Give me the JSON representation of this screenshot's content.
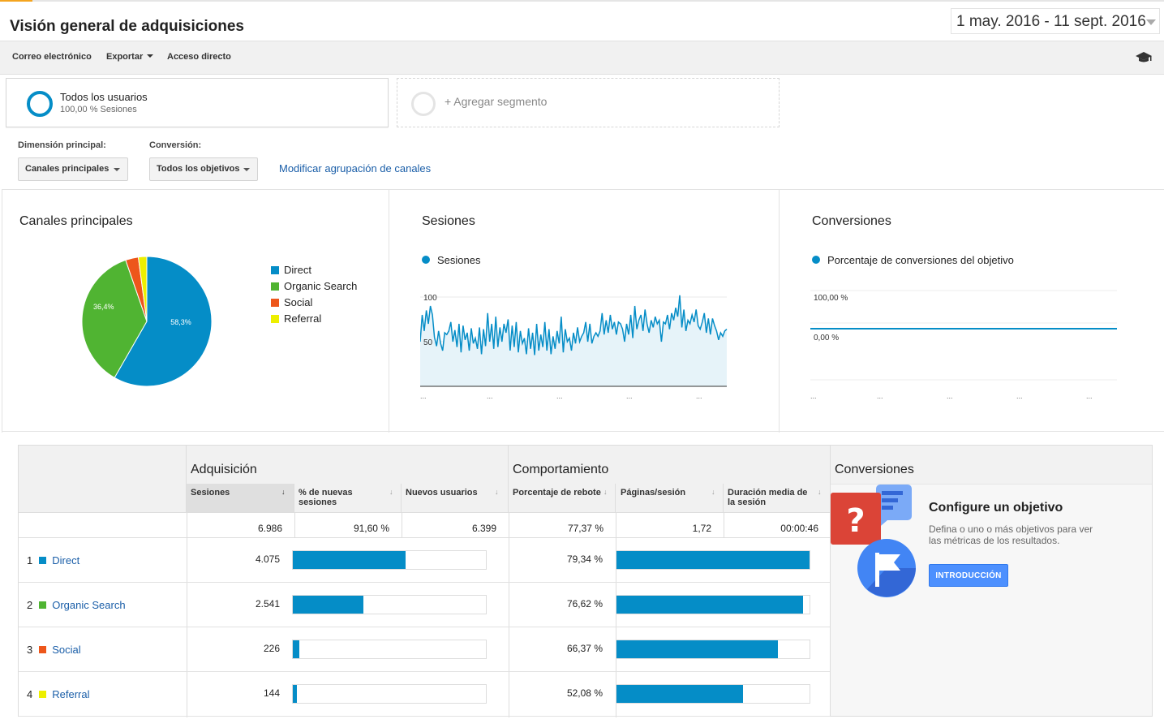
{
  "page": {
    "title": "Visión general de adquisiciones",
    "date_range": "1 may. 2016 - 11 sept. 2016"
  },
  "toolbar": {
    "email": "Correo electrónico",
    "export": "Exportar",
    "shortcut": "Acceso directo"
  },
  "segment": {
    "name": "Todos los usuarios",
    "sub": "100,00 % Sesiones",
    "add": "+ Agregar segmento"
  },
  "controls": {
    "dimension_label": "Dimensión principal:",
    "dimension_value": "Canales principales",
    "conversion_label": "Conversión:",
    "conversion_value": "Todos los objetivos",
    "modify_link": "Modificar agrupación de canales"
  },
  "colors": {
    "direct": "#058dc7",
    "organic": "#50b432",
    "social": "#ed561b",
    "referral": "#edef00",
    "link": "#1a5ea8"
  },
  "pie_panel": {
    "title": "Canales principales",
    "legend": [
      "Direct",
      "Organic Search",
      "Social",
      "Referral"
    ],
    "label_direct": "58,3%",
    "label_organic": "36,4%"
  },
  "sessions_panel": {
    "title": "Sesiones",
    "legend": "Sesiones",
    "tick_100": "100",
    "tick_50": "50",
    "x_ticks": [
      "...",
      "...",
      "...",
      "...",
      "..."
    ]
  },
  "conversion_panel": {
    "title": "Conversiones",
    "legend": "Porcentaje de conversiones del objetivo",
    "tick_top": "100,00 %",
    "tick_zero": "0,00 %",
    "x_ticks": [
      "...",
      "...",
      "...",
      "...",
      "..."
    ]
  },
  "chart_data": [
    {
      "type": "pie",
      "categories": [
        "Direct",
        "Organic Search",
        "Social",
        "Referral"
      ],
      "values": [
        58.3,
        36.4,
        3.2,
        2.1
      ]
    },
    {
      "type": "area",
      "series": [
        {
          "name": "Sesiones",
          "values": [
            50,
            80,
            62,
            85,
            70,
            90,
            80,
            55,
            45,
            62,
            48,
            40,
            60,
            58,
            62,
            72,
            50,
            63,
            44,
            70,
            38,
            68,
            52,
            60,
            40,
            65,
            48,
            54,
            42,
            66,
            36,
            64,
            45,
            82,
            50,
            70,
            42,
            78,
            44,
            66,
            50,
            70,
            60,
            75,
            40,
            68,
            44,
            72,
            38,
            62,
            48,
            54,
            36,
            65,
            42,
            60,
            35,
            70,
            40,
            58,
            44,
            72,
            40,
            64,
            36,
            56,
            42,
            62,
            48,
            78,
            38,
            64,
            50,
            54,
            40,
            60,
            48,
            66,
            50,
            56,
            60,
            72,
            50,
            70,
            48,
            56,
            60,
            56,
            62,
            82,
            58,
            74,
            60,
            80,
            64,
            72,
            58,
            72,
            70,
            64,
            50,
            70,
            58,
            80,
            54,
            90,
            64,
            74,
            80,
            62,
            86,
            70,
            60,
            74,
            66,
            78,
            70,
            74,
            50,
            72,
            70,
            80,
            64,
            82,
            74,
            88,
            78,
            102,
            66,
            86,
            62,
            74,
            70,
            80,
            72,
            86,
            68,
            64,
            72,
            82,
            60,
            76,
            58,
            76,
            68,
            62,
            52,
            60,
            56,
            62,
            64
          ]
        }
      ],
      "ylim": [
        0,
        100
      ]
    },
    {
      "type": "line",
      "series": [
        {
          "name": "Porcentaje de conversiones del objetivo",
          "values": [
            0,
            0
          ]
        }
      ],
      "ylim": [
        0,
        100
      ]
    }
  ],
  "table": {
    "group_acq": "Adquisición",
    "group_beh": "Comportamiento",
    "group_conv": "Conversiones",
    "columns": [
      "Sesiones",
      "% de nuevas sesiones",
      "Nuevos usuarios",
      "Porcentaje de rebote",
      "Páginas/sesión",
      "Duración media de la sesión"
    ],
    "totals": [
      "6.986",
      "91,60 %",
      "6.399",
      "77,37 %",
      "1,72",
      "00:00:46"
    ],
    "rows": [
      {
        "idx": "1",
        "label": "Direct",
        "sessions": "4.075",
        "bounce": "79,34 %",
        "sessions_frac": 0.583,
        "bounce_frac": 0.7934
      },
      {
        "idx": "2",
        "label": "Organic Search",
        "sessions": "2.541",
        "bounce": "76,62 %",
        "sessions_frac": 0.364,
        "bounce_frac": 0.7662
      },
      {
        "idx": "3",
        "label": "Social",
        "sessions": "226",
        "bounce": "66,37 %",
        "sessions_frac": 0.032,
        "bounce_frac": 0.6637
      },
      {
        "idx": "4",
        "label": "Referral",
        "sessions": "144",
        "bounce": "52,08 %",
        "sessions_frac": 0.021,
        "bounce_frac": 0.5208
      }
    ]
  },
  "goal": {
    "title": "Configure un objetivo",
    "desc": "Defina o uno o más objetivos para ver las métricas de los resultados.",
    "button": "INTRODUCCIÓN"
  }
}
